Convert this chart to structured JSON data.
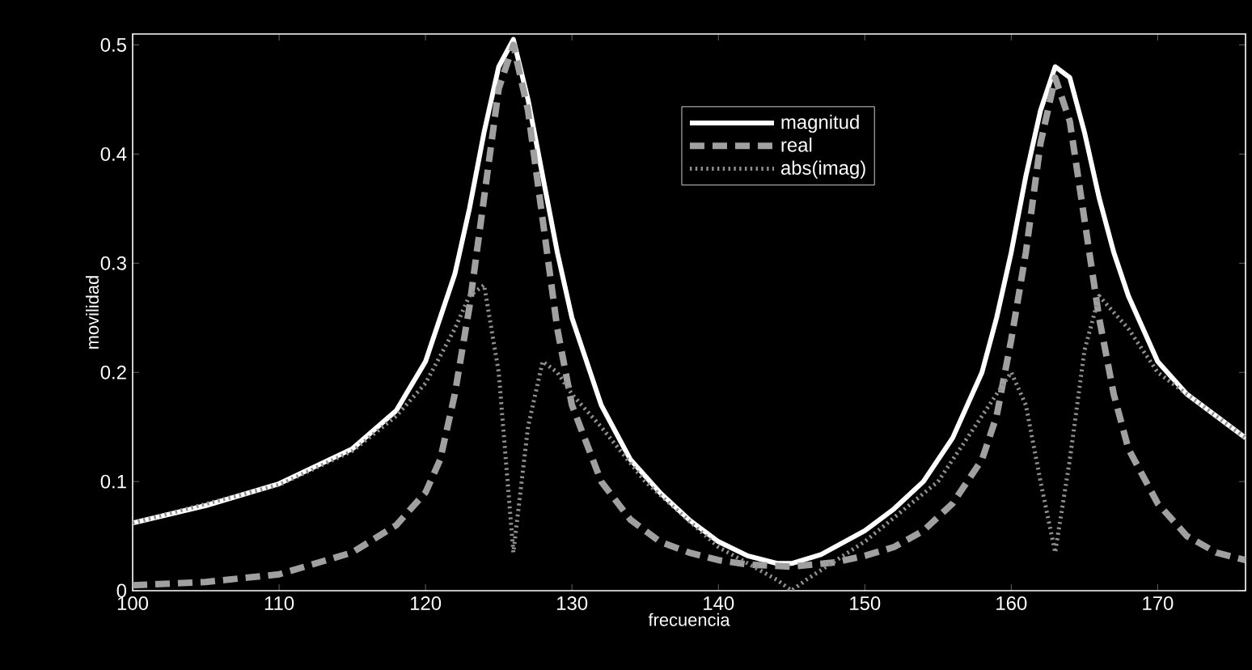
{
  "chart_data": {
    "type": "line",
    "xlabel": "frecuencia",
    "ylabel": "movilidad",
    "xlim": [
      100,
      176
    ],
    "ylim": [
      0,
      0.51
    ],
    "xticks": [
      100,
      110,
      120,
      130,
      140,
      150,
      160,
      170
    ],
    "yticks": [
      0,
      0.1,
      0.2,
      0.3,
      0.4,
      0.5
    ],
    "grid": false,
    "legend": "top",
    "marker": "none",
    "series": [
      {
        "name": "magnitud",
        "color": "#ffffff",
        "line_style": "solid",
        "x": [
          100,
          105,
          110,
          115,
          118,
          120,
          122,
          123,
          124,
          125,
          126,
          127,
          128,
          129,
          130,
          132,
          134,
          136,
          138,
          140,
          142,
          144,
          145,
          147,
          150,
          152,
          154,
          156,
          158,
          159,
          160,
          161,
          162,
          163,
          164,
          165,
          166,
          167,
          168,
          170,
          172,
          174,
          176
        ],
        "values": [
          0.062,
          0.078,
          0.098,
          0.13,
          0.165,
          0.21,
          0.29,
          0.35,
          0.42,
          0.48,
          0.505,
          0.45,
          0.38,
          0.31,
          0.25,
          0.17,
          0.12,
          0.09,
          0.065,
          0.045,
          0.032,
          0.025,
          0.025,
          0.033,
          0.055,
          0.075,
          0.1,
          0.14,
          0.2,
          0.25,
          0.31,
          0.38,
          0.44,
          0.48,
          0.47,
          0.42,
          0.36,
          0.31,
          0.27,
          0.21,
          0.18,
          0.16,
          0.14
        ]
      },
      {
        "name": "real",
        "color": "#a0a0a0",
        "line_style": "dashed",
        "x": [
          100,
          105,
          110,
          115,
          118,
          120,
          121,
          122,
          123,
          124,
          125,
          126,
          127,
          128,
          129,
          130,
          132,
          134,
          136,
          138,
          140,
          142,
          145,
          148,
          150,
          152,
          154,
          156,
          158,
          159,
          160,
          161,
          162,
          163,
          164,
          165,
          166,
          167,
          168,
          170,
          172,
          174,
          176
        ],
        "values": [
          0.005,
          0.008,
          0.015,
          0.035,
          0.06,
          0.09,
          0.12,
          0.18,
          0.26,
          0.36,
          0.46,
          0.5,
          0.44,
          0.34,
          0.24,
          0.17,
          0.1,
          0.065,
          0.045,
          0.035,
          0.028,
          0.024,
          0.022,
          0.026,
          0.032,
          0.04,
          0.055,
          0.08,
          0.12,
          0.16,
          0.23,
          0.31,
          0.41,
          0.47,
          0.43,
          0.34,
          0.25,
          0.18,
          0.13,
          0.08,
          0.05,
          0.035,
          0.028
        ]
      },
      {
        "name": "abs(imag)",
        "color": "#909090",
        "line_style": "dotted",
        "x": [
          100,
          110,
          115,
          118,
          120,
          122,
          123,
          124,
          125,
          126,
          127,
          128,
          129,
          130,
          132,
          135,
          140,
          144,
          145,
          146,
          150,
          155,
          158,
          160,
          161,
          162,
          163,
          164,
          165,
          166,
          168,
          170,
          174,
          176
        ],
        "values": [
          0.062,
          0.097,
          0.128,
          0.16,
          0.19,
          0.24,
          0.27,
          0.28,
          0.2,
          0.035,
          0.15,
          0.21,
          0.2,
          0.18,
          0.15,
          0.1,
          0.04,
          0.01,
          0.0,
          0.01,
          0.045,
          0.1,
          0.16,
          0.2,
          0.17,
          0.1,
          0.035,
          0.12,
          0.22,
          0.27,
          0.24,
          0.2,
          0.16,
          0.14
        ]
      }
    ]
  }
}
